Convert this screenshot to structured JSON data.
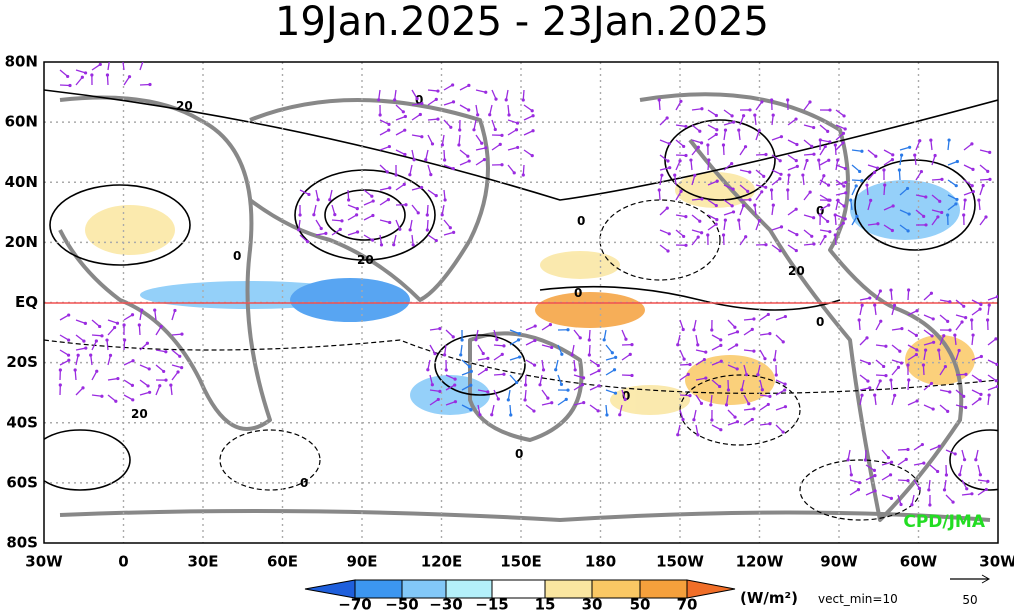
{
  "title": "19Jan.2025 - 23Jan.2025",
  "lat_labels": [
    "80N",
    "60N",
    "40N",
    "20N",
    "EQ",
    "20S",
    "40S",
    "60S",
    "80S"
  ],
  "lon_labels": [
    "30W",
    "0",
    "30E",
    "60E",
    "90E",
    "120E",
    "150E",
    "180",
    "150W",
    "120W",
    "90W",
    "60W",
    "30W"
  ],
  "colorbar": {
    "labels": [
      "−70",
      "−50",
      "−30",
      "−15",
      "15",
      "30",
      "50",
      "70"
    ],
    "unit": "(W/m²)"
  },
  "vector_note": "vect_min=10",
  "reference_vector": "50",
  "credit": "CPD/JMA",
  "contour_labels": [
    "20",
    "0",
    "0",
    "20",
    "0",
    "0",
    "20",
    "0",
    "0",
    "20",
    "0",
    "0",
    "0"
  ]
}
